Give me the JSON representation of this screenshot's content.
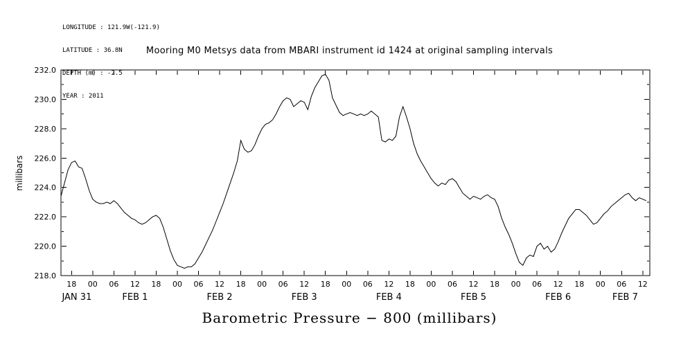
{
  "header": {
    "meta_lines": [
      "LONGITUDE : 121.9W(-121.9)",
      "LATITUDE : 36.8N",
      "DEPTH (m) : -2.5",
      "YEAR : 2011"
    ],
    "title": "Mooring M0 Metsys data from MBARI instrument id 1424 at original sampling intervals"
  },
  "chart_data": {
    "type": "line",
    "title": "Mooring M0 Metsys data from MBARI instrument id 1424 at original sampling intervals",
    "ylabel": "millibars",
    "xlabel": "Barometric Pressure − 800 (millibars)",
    "ylim": [
      218.0,
      232.0
    ],
    "y_major_ticks": [
      218,
      220,
      222,
      224,
      226,
      228,
      230,
      232
    ],
    "y_tick_labels": [
      "218.0",
      "220.0",
      "222.0",
      "224.0",
      "226.0",
      "228.0",
      "230.0",
      "232.0"
    ],
    "x_domain_hours": [
      15,
      182
    ],
    "x_tick_interval_hours": 6,
    "x_tick_labels_cycle": [
      "00",
      "06",
      "12",
      "18"
    ],
    "day_labels": [
      "JAN 31",
      "FEB 1",
      "FEB 2",
      "FEB 3",
      "FEB 4",
      "FEB 5",
      "FEB 6",
      "FEB 7"
    ],
    "grid": false,
    "legend": "none",
    "line_color": "#000000",
    "series": [
      {
        "name": "barometric_pressure_minus_800_mb",
        "start_hour": 15,
        "step_hours": 1,
        "values": [
          223.4,
          224.3,
          225.2,
          225.7,
          225.8,
          225.4,
          225.3,
          224.6,
          223.8,
          223.2,
          223.0,
          222.9,
          222.9,
          223.0,
          222.9,
          223.1,
          222.9,
          222.6,
          222.3,
          222.1,
          221.9,
          221.8,
          221.6,
          221.5,
          221.6,
          221.8,
          222.0,
          222.1,
          221.9,
          221.3,
          220.5,
          219.7,
          219.1,
          218.7,
          218.6,
          218.5,
          218.6,
          218.6,
          218.8,
          219.2,
          219.6,
          220.1,
          220.6,
          221.1,
          221.7,
          222.3,
          222.9,
          223.6,
          224.3,
          225.0,
          225.8,
          227.2,
          226.6,
          226.4,
          226.5,
          226.9,
          227.5,
          228.0,
          228.3,
          228.4,
          228.6,
          229.0,
          229.5,
          229.9,
          230.1,
          230.0,
          229.5,
          229.7,
          229.9,
          229.8,
          229.3,
          230.2,
          230.8,
          231.2,
          231.6,
          231.7,
          231.3,
          230.1,
          229.6,
          229.1,
          228.9,
          229.0,
          229.1,
          229.0,
          228.9,
          229.0,
          228.9,
          229.0,
          229.2,
          229.0,
          228.8,
          227.2,
          227.1,
          227.3,
          227.2,
          227.5,
          228.8,
          229.5,
          228.8,
          228.0,
          227.0,
          226.3,
          225.8,
          225.4,
          225.0,
          224.6,
          224.3,
          224.1,
          224.3,
          224.2,
          224.5,
          224.6,
          224.4,
          224.0,
          223.6,
          223.4,
          223.2,
          223.4,
          223.3,
          223.2,
          223.4,
          223.5,
          223.3,
          223.2,
          222.7,
          221.9,
          221.3,
          220.8,
          220.2,
          219.5,
          218.9,
          218.7,
          219.2,
          219.4,
          219.3,
          220.0,
          220.2,
          219.8,
          220.0,
          219.6,
          219.8,
          220.3,
          220.9,
          221.4,
          221.9,
          222.2,
          222.5,
          222.5,
          222.3,
          222.1,
          221.8,
          221.5,
          221.6,
          221.9,
          222.2,
          222.4,
          222.7,
          222.9,
          223.1,
          223.3,
          223.5,
          223.6,
          223.3,
          223.1,
          223.3,
          223.2,
          223.1
        ]
      }
    ]
  }
}
